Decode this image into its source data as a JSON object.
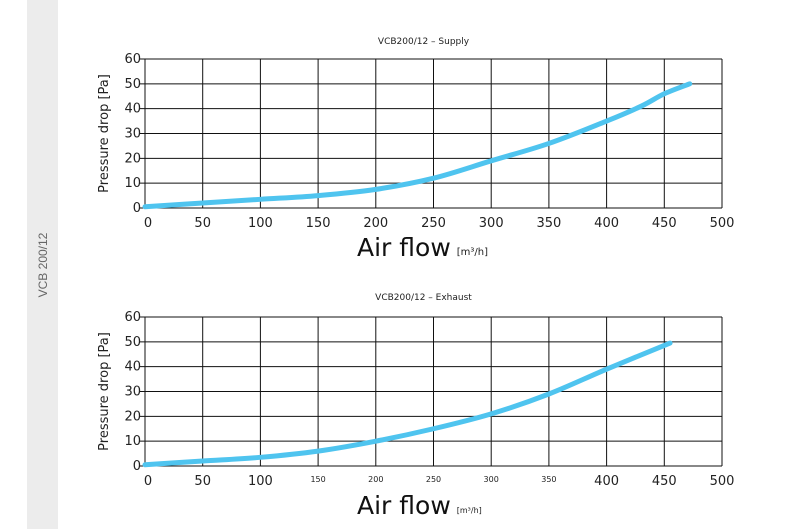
{
  "sidebar": {
    "label": "VCB 200/12"
  },
  "chart_data": [
    {
      "type": "line",
      "title": "VCB200/12 – Supply",
      "xlabel": "Air flow",
      "xunit": "[m³/h]",
      "ylabel": "Pressure drop [Pa]",
      "xlim": [
        0,
        500
      ],
      "ylim": [
        0,
        60
      ],
      "xticks": [
        "0",
        "50",
        "100",
        "150",
        "200",
        "250",
        "300",
        "350",
        "400",
        "450",
        "500"
      ],
      "yticks": [
        "0",
        "10",
        "20",
        "30",
        "40",
        "50",
        "60"
      ],
      "grid": true,
      "color": "#4fc4ef",
      "series": [
        {
          "name": "Supply",
          "x": [
            0,
            50,
            100,
            150,
            200,
            250,
            300,
            350,
            400,
            430,
            450,
            472
          ],
          "y": [
            0.5,
            2,
            3.5,
            5,
            7.5,
            12,
            19,
            26,
            35,
            41,
            46,
            50
          ]
        }
      ]
    },
    {
      "type": "line",
      "title": "VCB200/12 – Exhaust",
      "xlabel": "Air flow",
      "xunit": "[m³/h]",
      "ylabel": "Pressure drop [Pa]",
      "xlim": [
        0,
        500
      ],
      "ylim": [
        0,
        60
      ],
      "xticks": [
        "0",
        "50",
        "100",
        "150",
        "200",
        "250",
        "300",
        "350",
        "400",
        "450",
        "500"
      ],
      "yticks": [
        "0",
        "10",
        "20",
        "30",
        "40",
        "50",
        "60"
      ],
      "grid": true,
      "color": "#4fc4ef",
      "series": [
        {
          "name": "Exhaust",
          "x": [
            0,
            50,
            100,
            150,
            200,
            250,
            300,
            350,
            400,
            455
          ],
          "y": [
            0.5,
            2,
            3.5,
            6,
            10,
            15,
            21,
            29,
            39,
            49.5
          ]
        }
      ]
    }
  ]
}
